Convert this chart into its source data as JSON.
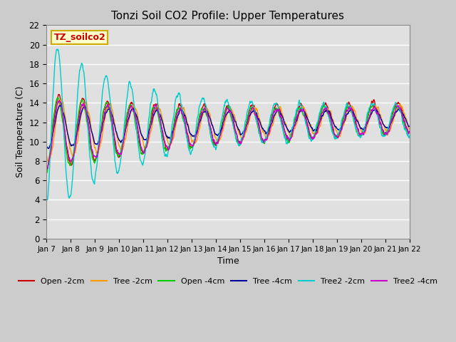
{
  "title": "Tonzi Soil CO2 Profile: Upper Temperatures",
  "xlabel": "Time",
  "ylabel": "Soil Temperature (C)",
  "ylim": [
    0,
    22
  ],
  "yticks": [
    0,
    2,
    4,
    6,
    8,
    10,
    12,
    14,
    16,
    18,
    20,
    22
  ],
  "annotation_text": "TZ_soilco2",
  "annotation_color": "#cc0000",
  "annotation_bg": "#ffffcc",
  "annotation_border": "#ccaa00",
  "fig_bg": "#dddddd",
  "plot_bg": "#e8e8e8",
  "series": [
    {
      "label": "Open -2cm",
      "color": "#cc0000"
    },
    {
      "label": "Tree -2cm",
      "color": "#ff9900"
    },
    {
      "label": "Open -4cm",
      "color": "#00cc00"
    },
    {
      "label": "Tree -4cm",
      "color": "#000099"
    },
    {
      "label": "Tree2 -2cm",
      "color": "#00cccc"
    },
    {
      "label": "Tree2 -4cm",
      "color": "#cc00cc"
    }
  ],
  "x_tick_labels": [
    "Jan 7",
    "Jan 8",
    "Jan 9",
    "Jan 10",
    "Jan 11",
    "Jan 12",
    "Jan 13",
    "Jan 14",
    "Jan 15",
    "Jan 16",
    "Jan 17",
    "Jan 18",
    "Jan 19",
    "Jan 20",
    "Jan 21",
    "Jan 22"
  ],
  "n_points": 1440
}
